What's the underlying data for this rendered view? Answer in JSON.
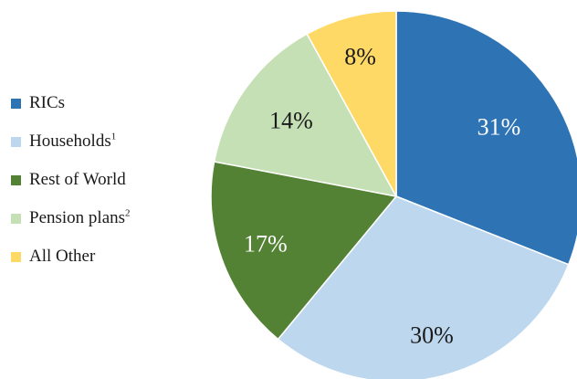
{
  "chart_data": {
    "type": "pie",
    "title": "",
    "slices": [
      {
        "name": "RICs",
        "sup": "",
        "value": 31,
        "label": "31%",
        "color": "#2e74b5",
        "label_color": "#ffffff"
      },
      {
        "name": "Households",
        "sup": "1",
        "value": 30,
        "label": "30%",
        "color": "#bdd7ee",
        "label_color": "#1a1a1a"
      },
      {
        "name": "Rest of World",
        "sup": "",
        "value": 17,
        "label": "17%",
        "color": "#548235",
        "label_color": "#ffffff"
      },
      {
        "name": "Pension plans",
        "sup": "2",
        "value": 14,
        "label": "14%",
        "color": "#c5e0b4",
        "label_color": "#1a1a1a"
      },
      {
        "name": "All Other",
        "sup": "",
        "value": 8,
        "label": "8%",
        "color": "#ffd966",
        "label_color": "#1a1a1a"
      }
    ],
    "start_angle": "12 o'clock",
    "direction": "clockwise",
    "legend_position": "left"
  }
}
